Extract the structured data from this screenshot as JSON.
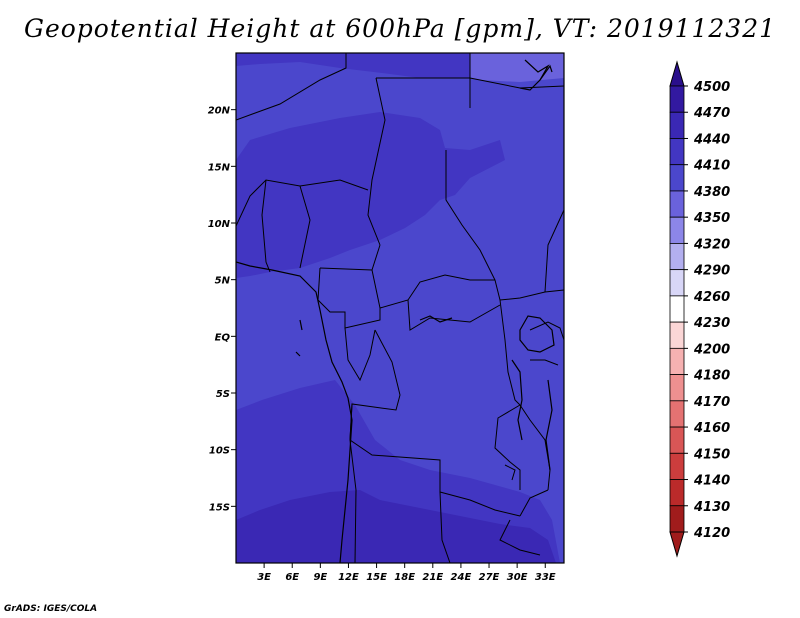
{
  "title": "Geopotential Height at 600hPa [gpm], VT: 2019112321",
  "credit": "GrADS: IGES/COLA",
  "map": {
    "lon_range": [
      0,
      35
    ],
    "lat_range": [
      -20,
      25
    ],
    "x_ticks": [
      {
        "value": 3,
        "label": "3E"
      },
      {
        "value": 6,
        "label": "6E"
      },
      {
        "value": 9,
        "label": "9E"
      },
      {
        "value": 12,
        "label": "12E"
      },
      {
        "value": 15,
        "label": "15E"
      },
      {
        "value": 18,
        "label": "18E"
      },
      {
        "value": 21,
        "label": "21E"
      },
      {
        "value": 24,
        "label": "24E"
      },
      {
        "value": 27,
        "label": "27E"
      },
      {
        "value": 30,
        "label": "30E"
      },
      {
        "value": 33,
        "label": "33E"
      }
    ],
    "y_ticks": [
      {
        "value": 20,
        "label": "20N"
      },
      {
        "value": 15,
        "label": "15N"
      },
      {
        "value": 10,
        "label": "10N"
      },
      {
        "value": 5,
        "label": "5N"
      },
      {
        "value": 0,
        "label": "EQ"
      },
      {
        "value": -5,
        "label": "5S"
      },
      {
        "value": -10,
        "label": "10S"
      },
      {
        "value": -15,
        "label": "15S"
      }
    ]
  },
  "colorbar": {
    "levels": [
      "4500",
      "4470",
      "4440",
      "4410",
      "4380",
      "4350",
      "4320",
      "4290",
      "4260",
      "4230",
      "4200",
      "4180",
      "4170",
      "4160",
      "4150",
      "4140",
      "4130",
      "4120"
    ],
    "colors": [
      "#2a0f8c",
      "#3219a0",
      "#3a28b4",
      "#4236c2",
      "#4b47cc",
      "#6a62dc",
      "#8c86e8",
      "#b3afef",
      "#d8d6f7",
      "#ffffff",
      "#fbd6d6",
      "#f6b1b1",
      "#ee9090",
      "#e47272",
      "#d95656",
      "#cc3d3d",
      "#bb2a2a",
      "#a01c1c"
    ]
  },
  "field_colors": {
    "c4380": "#4b47cc",
    "c4410": "#4236c2",
    "c4440": "#3a28b4"
  }
}
